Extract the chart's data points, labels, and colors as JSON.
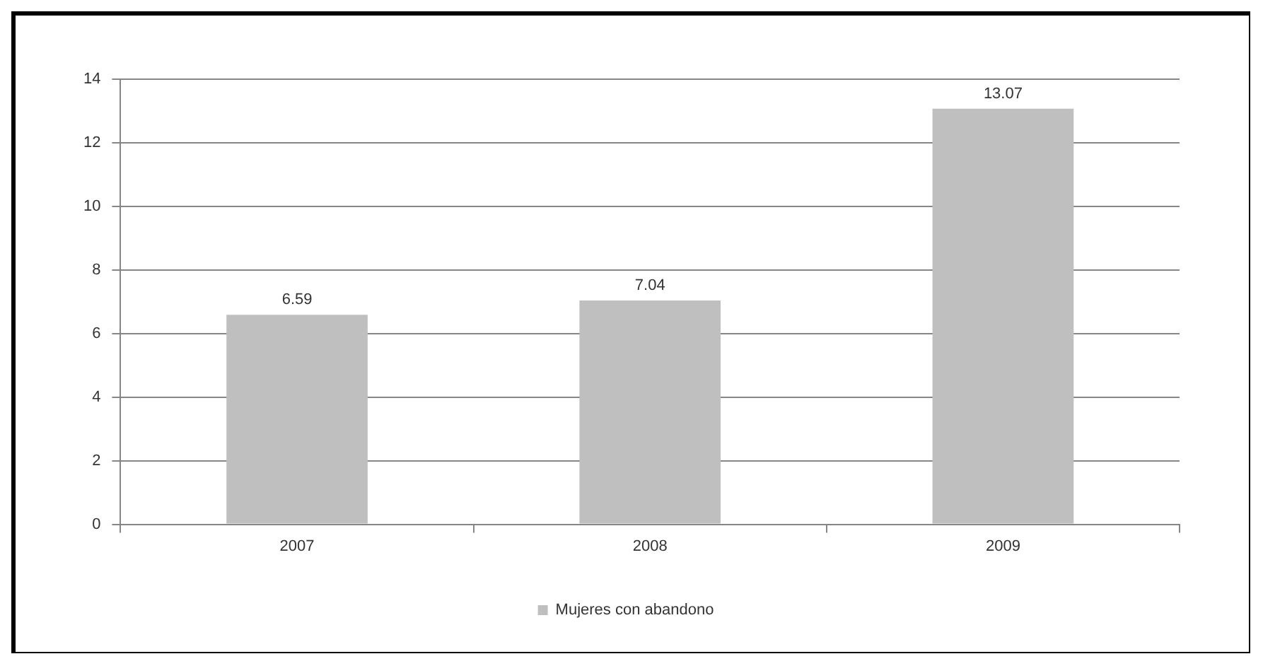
{
  "chart_data": {
    "type": "bar",
    "categories": [
      "2007",
      "2008",
      "2009"
    ],
    "series": [
      {
        "name": "Mujeres con abandono",
        "color": "#bfbfbf",
        "values": [
          6.59,
          7.04,
          13.07
        ]
      }
    ],
    "ylim": [
      0,
      14
    ],
    "yticks": [
      0,
      2,
      4,
      6,
      8,
      10,
      12,
      14
    ],
    "grid": "y",
    "legend": "bottom",
    "data_labels": true
  }
}
